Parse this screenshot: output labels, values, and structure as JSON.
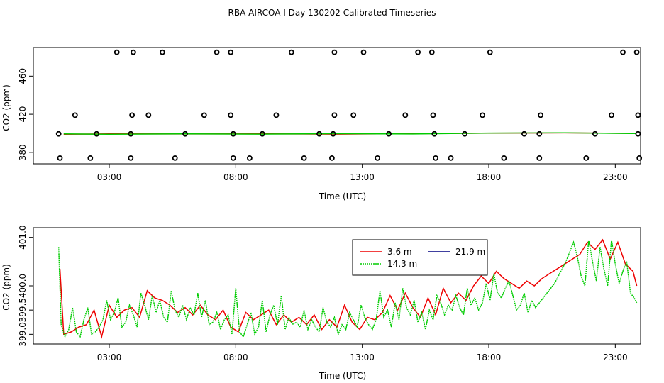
{
  "title": "RBA AIRCOA I  Day 130202  Calibrated Timeseries",
  "colors": {
    "red": "#ee0000",
    "green": "#00cc00",
    "navy": "#000080",
    "axis": "#000000"
  },
  "chart_data": [
    {
      "type": "scatter",
      "name": "top",
      "xlabel": "Time (UTC)",
      "ylabel": "CO2 (ppm)",
      "xlim": [
        0,
        24
      ],
      "ylim": [
        368,
        490
      ],
      "xticks": [
        3,
        8,
        13,
        18,
        23
      ],
      "xtick_labels": [
        "03:00",
        "08:00",
        "13:00",
        "18:00",
        "23:00"
      ],
      "yticks": [
        380,
        420,
        460
      ],
      "ytick_labels": [
        "380",
        "420",
        "460"
      ],
      "lines": [
        {
          "name": "3.6 m",
          "color": "red",
          "x": [
            1.2,
            3,
            6,
            9,
            12,
            15,
            18,
            21,
            23.8
          ],
          "y": [
            399.0,
            399.4,
            399.3,
            399.5,
            399.2,
            399.6,
            400.1,
            400.4,
            399.9
          ]
        },
        {
          "name": "14.3 m",
          "color": "green",
          "x": [
            1.2,
            3,
            6,
            9,
            12,
            15,
            18,
            21,
            23.8
          ],
          "y": [
            399.4,
            399.0,
            399.5,
            399.2,
            399.6,
            399.3,
            400.3,
            400.6,
            399.8
          ]
        }
      ],
      "points": {
        "x": [
          3.3,
          3.95,
          5.1,
          7.25,
          7.8,
          10.2,
          11.9,
          13.05,
          15.2,
          15.75,
          18.05,
          23.3,
          23.85,
          1.65,
          3.9,
          4.55,
          6.75,
          7.8,
          9.6,
          11.9,
          12.65,
          14.7,
          15.8,
          17.75,
          20.05,
          22.85,
          23.9,
          1.05,
          2.25,
          3.85,
          5.6,
          7.9,
          8.55,
          10.7,
          11.8,
          13.6,
          15.9,
          16.5,
          18.6,
          20.0,
          21.85,
          23.95,
          1.0,
          2.5,
          3.85,
          6.0,
          7.9,
          9.05,
          11.3,
          11.85,
          14.05,
          15.85,
          17.05,
          20.0,
          19.4,
          22.2,
          23.9
        ],
        "y": [
          485,
          485,
          485,
          485,
          485,
          485,
          485,
          485,
          485,
          485,
          485,
          485,
          485,
          419,
          419,
          419,
          419,
          419,
          419,
          419,
          419,
          419,
          419,
          419,
          419,
          419,
          419,
          374,
          374,
          374,
          374,
          374,
          374,
          374,
          374,
          374,
          374,
          374,
          374,
          374,
          374,
          374,
          399.5,
          399.5,
          399.5,
          399.5,
          399.5,
          399.5,
          399.5,
          399.5,
          399.5,
          399.5,
          399.5,
          399.5,
          399.5,
          399.5,
          399.5
        ]
      }
    },
    {
      "type": "line",
      "name": "bottom",
      "xlabel": "Time (UTC)",
      "ylabel": "CO2 (ppm)",
      "xlim": [
        0,
        24
      ],
      "ylim": [
        398.8,
        401.2
      ],
      "xticks": [
        3,
        8,
        13,
        18,
        23
      ],
      "xtick_labels": [
        "03:00",
        "08:00",
        "13:00",
        "18:00",
        "23:00"
      ],
      "yticks": [
        399.0,
        399.5,
        400.0,
        401.0
      ],
      "ytick_labels": [
        "399.0",
        "399.5",
        "400.0",
        "401.0"
      ],
      "legend": {
        "position": "top-right",
        "entries": [
          {
            "label": "3.6 m",
            "color": "red"
          },
          {
            "label": "21.9 m",
            "color": "navy"
          },
          {
            "label": "14.3 m",
            "color": "green"
          }
        ]
      },
      "series": [
        {
          "name": "3.6 m",
          "color": "red",
          "x": [
            1.05,
            1.2,
            1.5,
            1.8,
            2.1,
            2.4,
            2.7,
            3.0,
            3.3,
            3.6,
            3.9,
            4.2,
            4.5,
            4.8,
            5.1,
            5.4,
            5.7,
            6.0,
            6.3,
            6.6,
            6.9,
            7.2,
            7.5,
            7.8,
            8.1,
            8.4,
            8.7,
            9.0,
            9.3,
            9.6,
            9.9,
            10.2,
            10.5,
            10.8,
            11.1,
            11.4,
            11.7,
            12.0,
            12.3,
            12.6,
            12.9,
            13.2,
            13.5,
            13.8,
            14.1,
            14.4,
            14.7,
            15.0,
            15.3,
            15.6,
            15.9,
            16.2,
            16.5,
            16.8,
            17.1,
            17.4,
            17.7,
            18.0,
            18.3,
            18.6,
            18.9,
            19.2,
            19.5,
            19.8,
            20.1,
            20.4,
            20.7,
            21.0,
            21.3,
            21.6,
            21.9,
            22.2,
            22.5,
            22.8,
            23.1,
            23.4,
            23.7,
            23.85
          ],
          "y": [
            400.35,
            399.0,
            399.05,
            399.15,
            399.2,
            399.5,
            398.95,
            399.6,
            399.35,
            399.5,
            399.55,
            399.35,
            399.9,
            399.75,
            399.7,
            399.6,
            399.45,
            399.55,
            399.4,
            399.6,
            399.4,
            399.3,
            399.5,
            399.15,
            399.05,
            399.45,
            399.3,
            399.4,
            399.5,
            399.2,
            399.4,
            399.25,
            399.35,
            399.2,
            399.4,
            399.1,
            399.3,
            399.15,
            399.6,
            399.25,
            399.1,
            399.35,
            399.3,
            399.45,
            399.8,
            399.5,
            399.85,
            399.55,
            399.35,
            399.75,
            399.4,
            399.95,
            399.65,
            399.85,
            399.7,
            400.0,
            400.2,
            400.05,
            400.3,
            400.15,
            400.05,
            399.95,
            400.1,
            400.0,
            400.15,
            400.25,
            400.35,
            400.45,
            400.55,
            400.65,
            400.9,
            400.75,
            400.95,
            400.55,
            400.9,
            400.45,
            400.3,
            400.0
          ]
        },
        {
          "name": "14.3 m",
          "color": "green",
          "x": [
            1.0,
            1.1,
            1.25,
            1.4,
            1.55,
            1.7,
            1.85,
            2.0,
            2.15,
            2.3,
            2.45,
            2.6,
            2.75,
            2.9,
            3.05,
            3.2,
            3.35,
            3.5,
            3.65,
            3.8,
            3.95,
            4.1,
            4.25,
            4.4,
            4.55,
            4.7,
            4.85,
            5.0,
            5.15,
            5.3,
            5.45,
            5.6,
            5.75,
            5.9,
            6.05,
            6.2,
            6.35,
            6.5,
            6.65,
            6.8,
            6.95,
            7.1,
            7.25,
            7.4,
            7.55,
            7.7,
            7.85,
            8.0,
            8.15,
            8.3,
            8.45,
            8.6,
            8.75,
            8.9,
            9.05,
            9.2,
            9.35,
            9.5,
            9.65,
            9.8,
            9.95,
            10.1,
            10.25,
            10.4,
            10.55,
            10.7,
            10.85,
            11.0,
            11.15,
            11.3,
            11.45,
            11.6,
            11.75,
            11.9,
            12.05,
            12.2,
            12.35,
            12.5,
            12.65,
            12.8,
            12.95,
            13.1,
            13.25,
            13.4,
            13.55,
            13.7,
            13.85,
            14.0,
            14.15,
            14.3,
            14.45,
            14.6,
            14.75,
            14.9,
            15.05,
            15.2,
            15.35,
            15.5,
            15.65,
            15.8,
            15.95,
            16.1,
            16.25,
            16.4,
            16.55,
            16.7,
            16.85,
            17.0,
            17.15,
            17.3,
            17.45,
            17.6,
            17.75,
            17.9,
            18.05,
            18.2,
            18.35,
            18.5,
            18.65,
            18.8,
            18.95,
            19.1,
            19.25,
            19.4,
            19.55,
            19.7,
            19.85,
            20.0,
            20.15,
            20.3,
            20.45,
            20.6,
            20.75,
            20.9,
            21.05,
            21.2,
            21.35,
            21.5,
            21.65,
            21.8,
            21.95,
            22.1,
            22.25,
            22.4,
            22.55,
            22.7,
            22.85,
            23.0,
            23.15,
            23.3,
            23.45,
            23.6,
            23.75,
            23.85
          ],
          "y": [
            400.8,
            399.2,
            398.95,
            399.1,
            399.55,
            399.05,
            398.95,
            399.3,
            399.55,
            399.0,
            399.05,
            399.15,
            399.3,
            399.7,
            399.3,
            399.45,
            399.75,
            399.15,
            399.25,
            399.6,
            399.4,
            399.15,
            399.85,
            399.6,
            399.3,
            399.8,
            399.45,
            399.7,
            399.35,
            399.25,
            399.9,
            399.5,
            399.35,
            399.6,
            399.3,
            399.55,
            399.4,
            399.85,
            399.35,
            399.7,
            399.2,
            399.25,
            399.45,
            399.1,
            399.3,
            399.4,
            399.0,
            399.95,
            399.05,
            398.95,
            399.2,
            399.45,
            399.0,
            399.15,
            399.7,
            399.05,
            399.4,
            399.6,
            399.2,
            399.8,
            399.1,
            399.35,
            399.2,
            399.25,
            399.15,
            399.5,
            399.1,
            399.3,
            399.15,
            399.05,
            399.55,
            399.25,
            399.15,
            399.35,
            399.0,
            399.2,
            399.1,
            399.45,
            399.3,
            399.15,
            399.6,
            399.35,
            399.2,
            399.1,
            399.3,
            399.9,
            399.35,
            399.5,
            399.15,
            399.65,
            399.3,
            399.95,
            399.55,
            399.4,
            399.7,
            399.25,
            399.45,
            399.1,
            399.5,
            399.3,
            399.8,
            399.65,
            399.4,
            399.6,
            399.5,
            399.8,
            399.55,
            399.4,
            399.95,
            399.6,
            399.75,
            399.5,
            399.65,
            400.05,
            399.7,
            400.25,
            399.85,
            399.75,
            399.95,
            400.1,
            399.8,
            399.5,
            399.6,
            399.85,
            399.45,
            399.7,
            399.55,
            399.65,
            399.75,
            399.85,
            399.95,
            400.05,
            400.2,
            400.35,
            400.5,
            400.7,
            400.9,
            400.6,
            400.2,
            400.0,
            400.95,
            400.5,
            400.1,
            400.8,
            400.35,
            400.0,
            400.95,
            400.45,
            400.05,
            400.3,
            400.5,
            399.85,
            399.75,
            399.65
          ]
        }
      ]
    }
  ]
}
